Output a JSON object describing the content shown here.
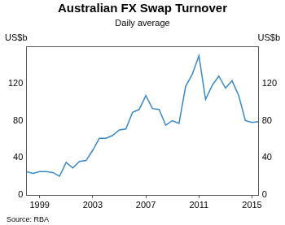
{
  "chart_data": {
    "type": "line",
    "title": "Australian FX Swap Turnover",
    "subtitle": "Daily average",
    "ylabel": "US$b",
    "note": "Source: RBA",
    "categories": [
      null,
      null,
      "1999",
      null,
      null,
      null,
      null,
      null,
      null,
      null,
      "2003",
      null,
      null,
      null,
      null,
      null,
      null,
      null,
      "2007",
      null,
      null,
      null,
      null,
      null,
      null,
      null,
      "2011",
      null,
      null,
      null,
      null,
      null,
      null,
      null,
      "2015",
      null
    ],
    "values": [
      25,
      23,
      25,
      25,
      24,
      20,
      35,
      29,
      36,
      37,
      48,
      61,
      61,
      64,
      70,
      71,
      89,
      92,
      107,
      93,
      92,
      75,
      80,
      77,
      117,
      130,
      150,
      103,
      118,
      128,
      115,
      123,
      107,
      80,
      78,
      79
    ],
    "color": "#3a88c8",
    "ylim": [
      0,
      160
    ],
    "yticks": [
      0,
      40,
      80,
      120
    ],
    "grid": false
  }
}
